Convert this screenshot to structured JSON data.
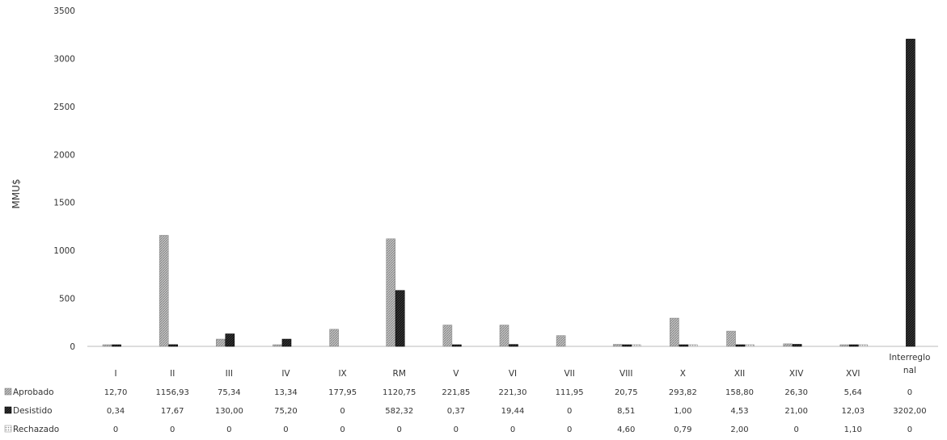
{
  "chart_data": {
    "type": "bar",
    "ylabel": "MMU$",
    "ylim": [
      0,
      3500
    ],
    "yticks": [
      0,
      500,
      1000,
      1500,
      2000,
      2500,
      3000,
      3500
    ],
    "grid": false,
    "legend": "data table below chart",
    "categories": [
      "I",
      "II",
      "III",
      "IV",
      "IX",
      "RM",
      "V",
      "VI",
      "VII",
      "VIII",
      "X",
      "XII",
      "XIV",
      "XVI",
      "Interregional"
    ],
    "category_labels": [
      [
        "I"
      ],
      [
        "II"
      ],
      [
        "III"
      ],
      [
        "IV"
      ],
      [
        "IX"
      ],
      [
        "RM"
      ],
      [
        "V"
      ],
      [
        "VI"
      ],
      [
        "VII"
      ],
      [
        "VIII"
      ],
      [
        "X"
      ],
      [
        "XII"
      ],
      [
        "XIV"
      ],
      [
        "XVI"
      ],
      [
        "Interreglo",
        "nal"
      ]
    ],
    "series": [
      {
        "name": "Aprobado",
        "color": "#b5b5b5",
        "pattern": "light-hatch",
        "values": [
          12.7,
          1156.93,
          75.34,
          13.34,
          177.95,
          1120.75,
          221.85,
          221.3,
          111.95,
          20.75,
          293.82,
          158.8,
          26.3,
          5.64,
          0
        ],
        "labels": [
          "12,70",
          "1156,93",
          "75,34",
          "13,34",
          "177,95",
          "1120,75",
          "221,85",
          "221,30",
          "111,95",
          "20,75",
          "293,82",
          "158,80",
          "26,30",
          "5,64",
          "0"
        ]
      },
      {
        "name": "Desistido",
        "color": "#1a1a1a",
        "pattern": "dark-solid",
        "values": [
          0.34,
          17.67,
          130.0,
          75.2,
          0,
          582.32,
          0.37,
          19.44,
          0,
          8.51,
          1.0,
          4.53,
          21.0,
          12.03,
          3202.0
        ],
        "labels": [
          "0,34",
          "17,67",
          "130,00",
          "75,20",
          "0",
          "582,32",
          "0,37",
          "19,44",
          "0",
          "8,51",
          "1,00",
          "4,53",
          "21,00",
          "12,03",
          "3202,00"
        ]
      },
      {
        "name": "Rechazado",
        "color": "#d0d0d0",
        "pattern": "dotted",
        "values": [
          0,
          0,
          0,
          0,
          0,
          0,
          0,
          0,
          0,
          4.6,
          0.79,
          2.0,
          0,
          1.1,
          0
        ],
        "labels": [
          "0",
          "0",
          "0",
          "0",
          "0",
          "0",
          "0",
          "0",
          "0",
          "4,60",
          "0,79",
          "2,00",
          "0",
          "1,10",
          "0"
        ]
      }
    ]
  }
}
